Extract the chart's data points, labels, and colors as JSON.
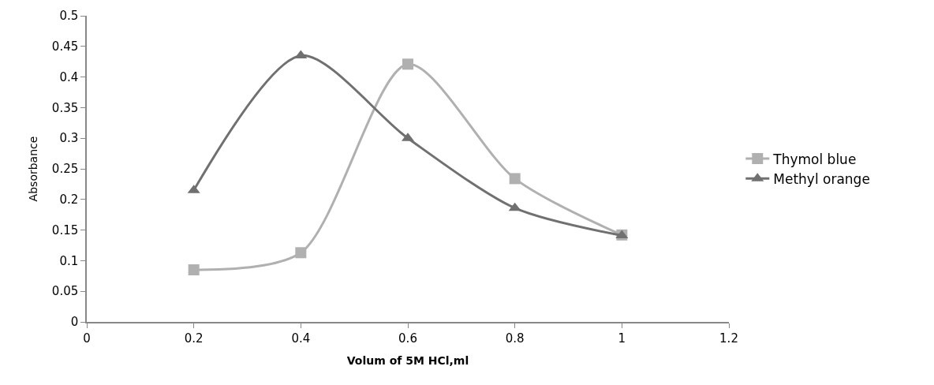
{
  "chart_data": {
    "type": "line",
    "xlabel": "Volum of 5M HCl,ml",
    "ylabel": "Absorbance",
    "x": [
      0.2,
      0.4,
      0.6,
      0.8,
      1.0
    ],
    "series": [
      {
        "name": "Thymol blue",
        "color": "#b0b0b0",
        "marker": "square",
        "values": [
          0.085,
          0.113,
          0.421,
          0.234,
          0.142
        ]
      },
      {
        "name": "Methyl orange",
        "color": "#707070",
        "marker": "triangle",
        "values": [
          0.215,
          0.435,
          0.3,
          0.186,
          0.141
        ]
      }
    ],
    "xlim": [
      0,
      1.2
    ],
    "xticks": [
      0,
      0.2,
      0.4,
      0.6,
      0.8,
      1,
      1.2
    ],
    "ylim": [
      0,
      0.5
    ],
    "yticks": [
      0,
      0.05,
      0.1,
      0.15,
      0.2,
      0.25,
      0.3,
      0.35,
      0.4,
      0.45,
      0.5
    ],
    "legend": "right",
    "line_style": "solid"
  }
}
